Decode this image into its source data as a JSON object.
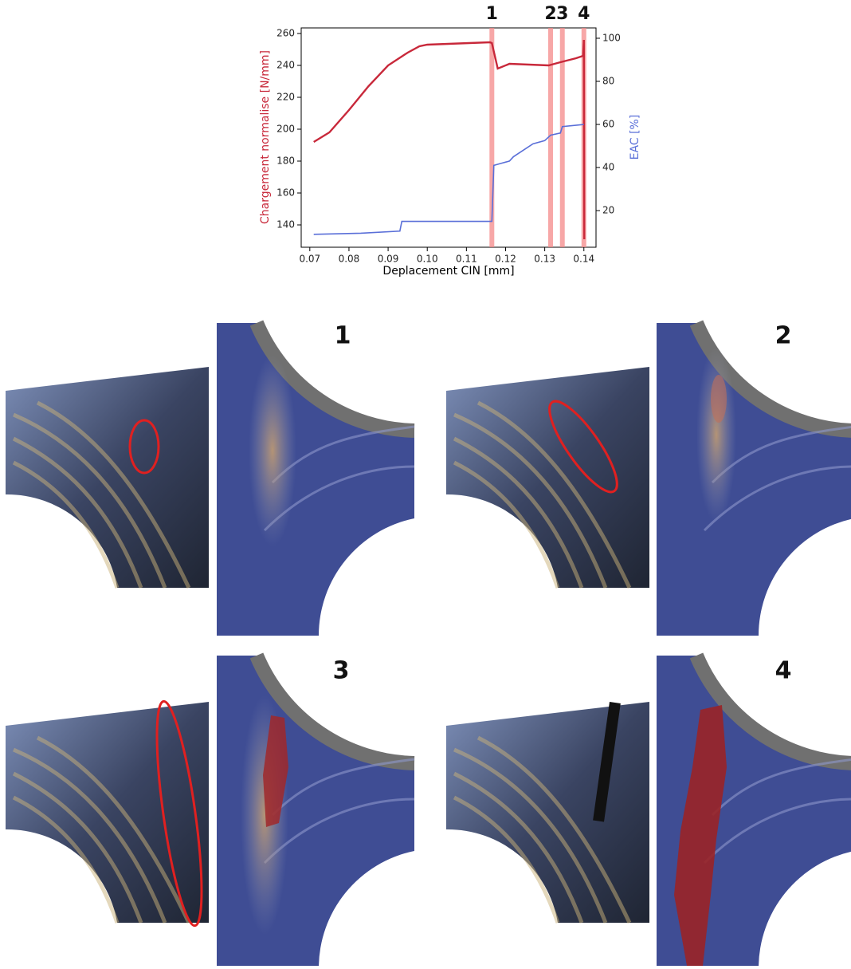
{
  "chart_data": {
    "type": "line",
    "xlabel": "Deplacement CIN [mm]",
    "ylabel": "Chargement normalise [N/mm]",
    "y2label": "EAC [%]",
    "xlim": [
      0.0678,
      0.1431
    ],
    "ylim": [
      126,
      263.5
    ],
    "y2lim": [
      3,
      104.8
    ],
    "xticks": [
      0.07,
      0.08,
      0.09,
      {
        "value": 0.1,
        "label": "0.10"
      },
      0.11,
      0.12,
      0.13,
      0.14
    ],
    "yticks": [
      140,
      160,
      180,
      200,
      220,
      240,
      260
    ],
    "y2ticks": [
      20,
      40,
      60,
      80,
      100
    ],
    "markers": [
      {
        "x": 0.1165,
        "label": "1"
      },
      {
        "x": 0.1315,
        "label": "2"
      },
      {
        "x": 0.1345,
        "label": "3"
      },
      {
        "x": 0.14,
        "label": "4"
      }
    ],
    "series": [
      {
        "color": "#c8283a",
        "axis": "y",
        "x": [
          0.071,
          0.075,
          0.08,
          0.085,
          0.09,
          0.095,
          0.098,
          0.1,
          0.116,
          0.1165,
          0.118,
          0.121,
          0.131,
          0.134,
          0.138,
          0.1398,
          0.14,
          0.1401
        ],
        "values": [
          192,
          198,
          212,
          227,
          240,
          248,
          252,
          253,
          254.5,
          254,
          238,
          241,
          240,
          242,
          244.5,
          246,
          256,
          131
        ]
      },
      {
        "color": "#5a6fd8",
        "axis": "y2",
        "x": [
          0.071,
          0.083,
          0.093,
          0.0935,
          0.1165,
          0.117,
          0.119,
          0.121,
          0.122,
          0.127,
          0.13,
          0.1315,
          0.134,
          0.1345,
          0.14
        ],
        "values": [
          9,
          9.5,
          10.5,
          15,
          15,
          41,
          42,
          43,
          45,
          51,
          52.5,
          55,
          56,
          59,
          60
        ]
      }
    ]
  },
  "panels": [
    {
      "label": "1"
    },
    {
      "label": "2"
    },
    {
      "label": "3"
    },
    {
      "label": "4"
    }
  ]
}
